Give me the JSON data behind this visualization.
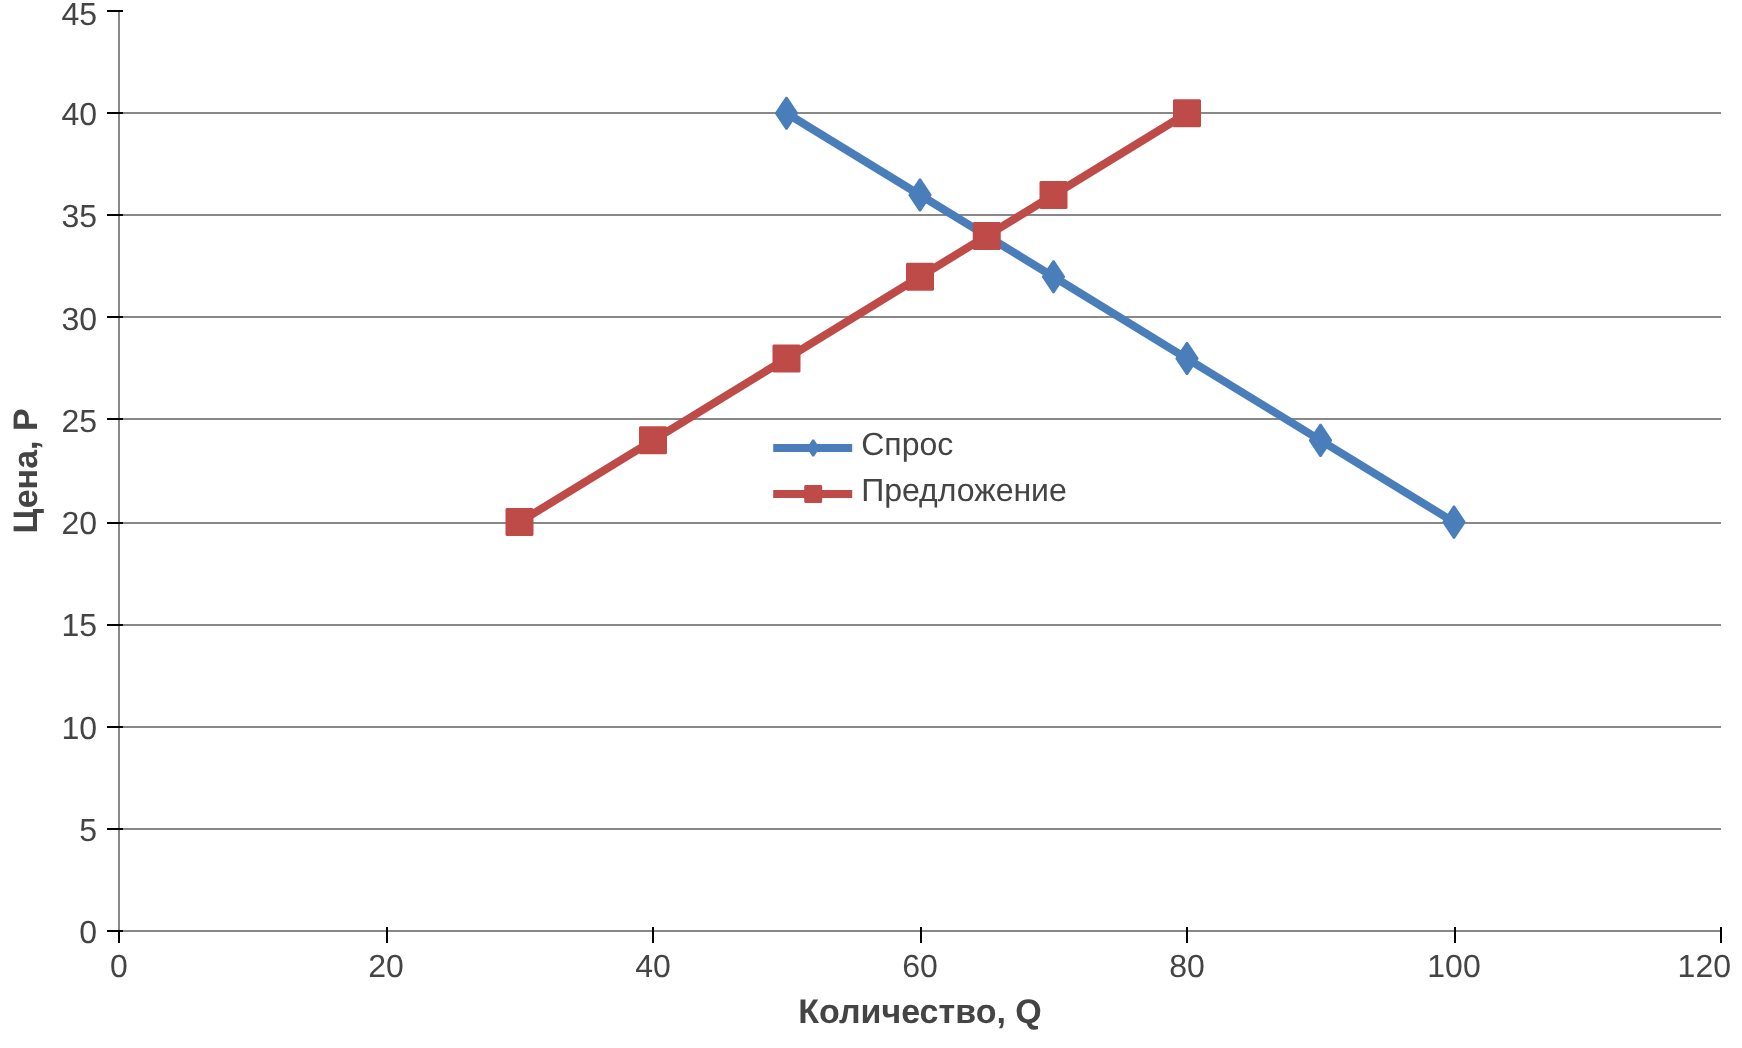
{
  "chart_data": {
    "type": "line",
    "xlabel": "Количество, Q",
    "ylabel": "Цена, P",
    "xlim": [
      0,
      120
    ],
    "xticks": [
      0,
      20,
      40,
      60,
      80,
      100,
      120
    ],
    "ylim": [
      0,
      45
    ],
    "yticks": [
      0,
      5,
      10,
      15,
      20,
      25,
      30,
      35,
      40,
      45
    ],
    "grid": "y",
    "legend": "center",
    "line_style": "solid",
    "series": [
      {
        "name": "Спрос",
        "color": "#4a7ebb",
        "marker": "diamond",
        "x": [
          50,
          60,
          70,
          80,
          90,
          100
        ],
        "values": [
          40,
          36,
          32,
          28,
          24,
          20
        ]
      },
      {
        "name": "Предложение",
        "color": "#be4b48",
        "marker": "square",
        "x": [
          30,
          40,
          50,
          60,
          65,
          70,
          80
        ],
        "values": [
          20,
          24,
          28,
          32,
          34,
          36,
          40
        ]
      }
    ]
  }
}
